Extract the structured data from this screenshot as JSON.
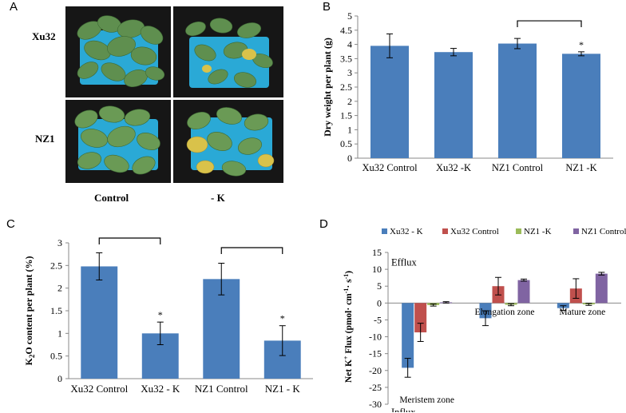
{
  "panel_labels": {
    "a": "A",
    "b": "B",
    "c": "C",
    "d": "D"
  },
  "panel_a": {
    "row_labels": [
      "Xu32",
      "NZ1"
    ],
    "col_labels": [
      "Control",
      "- K"
    ]
  },
  "colors": {
    "bar_blue": "#4a7ebb",
    "red": "#c0504d",
    "green": "#9bbb59",
    "purple": "#8064a2",
    "tray_blue": "#2aa9d6",
    "leaf_green": "#5f8f4f",
    "yellow_leaf": "#d9c24a"
  },
  "chart_data": [
    {
      "id": "B",
      "type": "bar",
      "categories": [
        "Xu32 Control",
        "Xu32 -K",
        "NZ1 Control",
        "NZ1 -K"
      ],
      "values": [
        3.95,
        3.73,
        4.03,
        3.67
      ],
      "errors": [
        0.42,
        0.13,
        0.18,
        0.07
      ],
      "ylabel": "Dry weight per plant (g)",
      "ylim": [
        0,
        5
      ],
      "yticks": [
        "0",
        "0.5",
        "1",
        "1.5",
        "2",
        "2.5",
        "3",
        "3.5",
        "4",
        "4.5",
        "5"
      ],
      "annotations": [
        {
          "category": "NZ1 -K",
          "text": "*"
        }
      ],
      "comparison_brackets": [
        [
          "NZ1 Control",
          "NZ1 -K"
        ]
      ],
      "grid": false
    },
    {
      "id": "C",
      "type": "bar",
      "categories": [
        "Xu32 Control",
        "Xu32 - K",
        "NZ1 Control",
        "NZ1 - K"
      ],
      "values": [
        2.48,
        1.0,
        2.2,
        0.84
      ],
      "errors": [
        0.3,
        0.25,
        0.35,
        0.33
      ],
      "ylabel_parts": [
        "K",
        "2",
        "O content per plant (%)"
      ],
      "ylim": [
        0,
        3
      ],
      "yticks": [
        "0",
        "0.5",
        "1",
        "1.5",
        "2",
        "2.5",
        "3"
      ],
      "annotations": [
        {
          "category": "Xu32 - K",
          "text": "*"
        },
        {
          "category": "NZ1 - K",
          "text": "*"
        }
      ],
      "comparison_brackets": [
        [
          "Xu32 Control",
          "Xu32 - K"
        ],
        [
          "NZ1 Control",
          "NZ1 - K"
        ]
      ],
      "grid": false
    },
    {
      "id": "D",
      "type": "bar",
      "categories": [
        "Meristem zone",
        "Elongation zone",
        "Mature zone"
      ],
      "series": [
        {
          "name": "Xu32 - K",
          "values": [
            -19.2,
            -4.5,
            -1.5
          ],
          "errors": [
            2.8,
            2.2,
            0.7
          ]
        },
        {
          "name": "Xu32 Control",
          "values": [
            -8.7,
            5.0,
            4.3
          ],
          "errors": [
            2.7,
            2.6,
            2.9
          ]
        },
        {
          "name": "NZ1 -K",
          "values": [
            -0.6,
            -0.5,
            -0.4
          ],
          "errors": [
            0.3,
            0.3,
            0.3
          ]
        },
        {
          "name": "NZ1 Control",
          "values": [
            0.2,
            6.8,
            8.7
          ],
          "errors": [
            0.2,
            0.3,
            0.4
          ]
        }
      ],
      "ylabel_parts": [
        "Net K",
        "+",
        " Flux (pmol· cm",
        "-1",
        "· s",
        "-1",
        ")"
      ],
      "ylim": [
        -30,
        15
      ],
      "yticks": [
        "-30",
        "-25",
        "-20",
        "-15",
        "-10",
        "-5",
        "0",
        "5",
        "10",
        "15"
      ],
      "annotations": [
        {
          "text": "Efflux"
        },
        {
          "text": "Influx"
        }
      ],
      "legend_position": "top",
      "grid": false
    }
  ]
}
